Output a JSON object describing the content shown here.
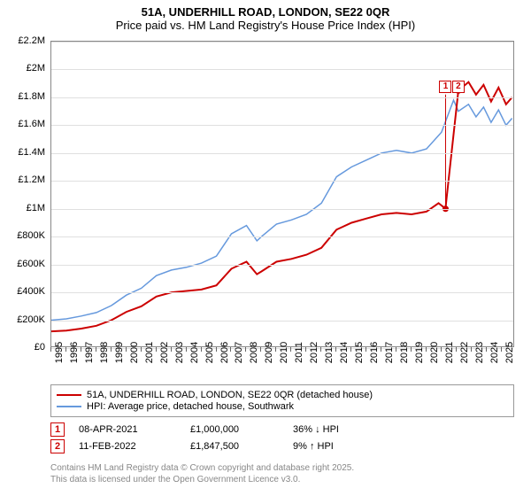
{
  "title": "51A, UNDERHILL ROAD, LONDON, SE22 0QR",
  "subtitle": "Price paid vs. HM Land Registry's House Price Index (HPI)",
  "chart": {
    "type": "line",
    "background_color": "#ffffff",
    "grid_color": "#e0e0e0",
    "border_color": "#888888",
    "x": {
      "min": 1995,
      "max": 2025.9,
      "ticks": [
        1995,
        1996,
        1997,
        1998,
        1999,
        2000,
        2001,
        2002,
        2003,
        2004,
        2005,
        2006,
        2007,
        2008,
        2009,
        2010,
        2011,
        2012,
        2013,
        2014,
        2015,
        2016,
        2017,
        2018,
        2019,
        2020,
        2021,
        2022,
        2023,
        2024,
        2025
      ],
      "tick_fontsize": 11
    },
    "y": {
      "min": 0,
      "max": 2200000,
      "ticks": [
        {
          "v": 0,
          "label": "£0"
        },
        {
          "v": 200000,
          "label": "£200K"
        },
        {
          "v": 400000,
          "label": "£400K"
        },
        {
          "v": 600000,
          "label": "£600K"
        },
        {
          "v": 800000,
          "label": "£800K"
        },
        {
          "v": 1000000,
          "label": "£1M"
        },
        {
          "v": 1200000,
          "label": "£1.2M"
        },
        {
          "v": 1400000,
          "label": "£1.4M"
        },
        {
          "v": 1600000,
          "label": "£1.6M"
        },
        {
          "v": 1800000,
          "label": "£1.8M"
        },
        {
          "v": 2000000,
          "label": "£2M"
        },
        {
          "v": 2200000,
          "label": "£2.2M"
        }
      ],
      "tick_fontsize": 11
    },
    "series": [
      {
        "name": "property",
        "label": "51A, UNDERHILL ROAD, LONDON, SE22 0QR (detached house)",
        "color": "#cc0000",
        "line_width": 2,
        "data": [
          [
            1995,
            120000
          ],
          [
            1996,
            125000
          ],
          [
            1997,
            140000
          ],
          [
            1998,
            160000
          ],
          [
            1999,
            200000
          ],
          [
            2000,
            260000
          ],
          [
            2001,
            300000
          ],
          [
            2002,
            370000
          ],
          [
            2003,
            400000
          ],
          [
            2004,
            410000
          ],
          [
            2005,
            420000
          ],
          [
            2006,
            450000
          ],
          [
            2007,
            570000
          ],
          [
            2008,
            620000
          ],
          [
            2008.7,
            530000
          ],
          [
            2009,
            550000
          ],
          [
            2010,
            620000
          ],
          [
            2011,
            640000
          ],
          [
            2012,
            670000
          ],
          [
            2013,
            720000
          ],
          [
            2014,
            850000
          ],
          [
            2015,
            900000
          ],
          [
            2016,
            930000
          ],
          [
            2017,
            960000
          ],
          [
            2018,
            970000
          ],
          [
            2019,
            960000
          ],
          [
            2020,
            980000
          ],
          [
            2020.8,
            1040000
          ],
          [
            2021.27,
            1000000
          ],
          [
            2021.3,
            1040000
          ],
          [
            2022.12,
            1847500
          ],
          [
            2022.8,
            1910000
          ],
          [
            2023.3,
            1820000
          ],
          [
            2023.8,
            1890000
          ],
          [
            2024.3,
            1770000
          ],
          [
            2024.8,
            1870000
          ],
          [
            2025.3,
            1750000
          ],
          [
            2025.7,
            1800000
          ]
        ]
      },
      {
        "name": "hpi",
        "label": "HPI: Average price, detached house, Southwark",
        "color": "#6699dd",
        "line_width": 1.5,
        "data": [
          [
            1995,
            200000
          ],
          [
            1996,
            210000
          ],
          [
            1997,
            230000
          ],
          [
            1998,
            255000
          ],
          [
            1999,
            305000
          ],
          [
            2000,
            380000
          ],
          [
            2001,
            430000
          ],
          [
            2002,
            520000
          ],
          [
            2003,
            560000
          ],
          [
            2004,
            580000
          ],
          [
            2005,
            610000
          ],
          [
            2006,
            660000
          ],
          [
            2007,
            820000
          ],
          [
            2008,
            880000
          ],
          [
            2008.7,
            770000
          ],
          [
            2009,
            800000
          ],
          [
            2010,
            890000
          ],
          [
            2011,
            920000
          ],
          [
            2012,
            960000
          ],
          [
            2013,
            1040000
          ],
          [
            2014,
            1230000
          ],
          [
            2015,
            1300000
          ],
          [
            2016,
            1350000
          ],
          [
            2017,
            1400000
          ],
          [
            2018,
            1420000
          ],
          [
            2019,
            1400000
          ],
          [
            2020,
            1430000
          ],
          [
            2021,
            1550000
          ],
          [
            2021.8,
            1780000
          ],
          [
            2022.12,
            1700000
          ],
          [
            2022.8,
            1750000
          ],
          [
            2023.3,
            1660000
          ],
          [
            2023.8,
            1730000
          ],
          [
            2024.3,
            1620000
          ],
          [
            2024.8,
            1710000
          ],
          [
            2025.3,
            1600000
          ],
          [
            2025.7,
            1650000
          ]
        ]
      }
    ],
    "sale_markers": [
      {
        "n": "1",
        "x": 2021.27,
        "y_top": 1820000
      },
      {
        "n": "2",
        "x": 2022.12,
        "y_top": 1820000
      }
    ]
  },
  "legend": {
    "items": [
      {
        "color": "#cc0000",
        "label": "51A, UNDERHILL ROAD, LONDON, SE22 0QR (detached house)",
        "width": 2
      },
      {
        "color": "#6699dd",
        "label": "HPI: Average price, detached house, Southwark",
        "width": 1.5
      }
    ]
  },
  "sales": [
    {
      "n": "1",
      "date": "08-APR-2021",
      "price": "£1,000,000",
      "change": "36% ↓ HPI"
    },
    {
      "n": "2",
      "date": "11-FEB-2022",
      "price": "£1,847,500",
      "change": "9% ↑ HPI"
    }
  ],
  "copyright": {
    "line1": "Contains HM Land Registry data © Crown copyright and database right 2025.",
    "line2": "This data is licensed under the Open Government Licence v3.0."
  }
}
